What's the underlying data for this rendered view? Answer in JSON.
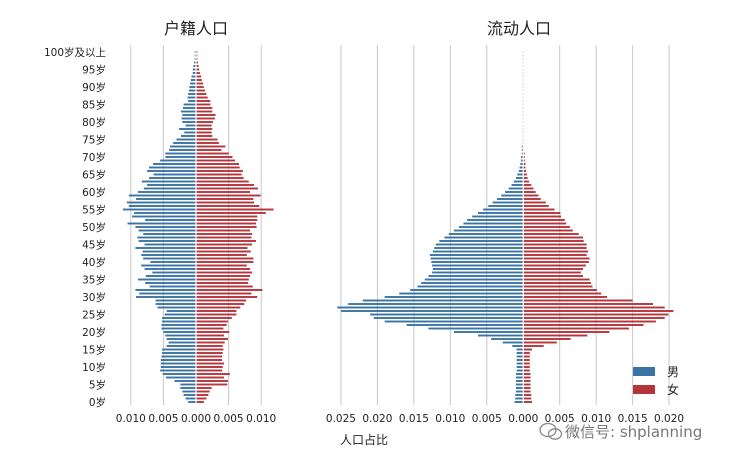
{
  "colors": {
    "male": "#3a73a6",
    "female": "#b5343a",
    "grid": "#c8c8c8",
    "axis": "#333333"
  },
  "chart_data": [
    {
      "type": "bar",
      "orientation": "horizontal-pyramid",
      "title": "户籍人口",
      "xlabel": "人口占比",
      "ylabel": "",
      "xlim": [
        -0.0135,
        0.0135
      ],
      "x_ticks": [
        "0.010",
        "0.005",
        "0.000",
        "0.005",
        "0.010"
      ],
      "x_tick_values": [
        -0.01,
        -0.005,
        0,
        0.005,
        0.01
      ],
      "y_tick_labels": [
        "0岁",
        "5岁",
        "10岁",
        "15岁",
        "20岁",
        "25岁",
        "30岁",
        "35岁",
        "40岁",
        "45岁",
        "50岁",
        "55岁",
        "60岁",
        "65岁",
        "70岁",
        "75岁",
        "80岁",
        "85岁",
        "90岁",
        "95岁",
        "100岁及以上"
      ],
      "ages_count": 101,
      "series": [
        {
          "name": "男",
          "values": [
            0.0012,
            0.0016,
            0.0019,
            0.0021,
            0.0024,
            0.0024,
            0.0033,
            0.0046,
            0.0051,
            0.0055,
            0.0054,
            0.0054,
            0.0054,
            0.0053,
            0.0052,
            0.0052,
            0.0045,
            0.0042,
            0.0045,
            0.0047,
            0.005,
            0.0053,
            0.0053,
            0.0052,
            0.0052,
            0.0048,
            0.0045,
            0.0059,
            0.0062,
            0.0062,
            0.0092,
            0.0087,
            0.0093,
            0.0071,
            0.0078,
            0.0089,
            0.0077,
            0.0067,
            0.0079,
            0.0084,
            0.007,
            0.0081,
            0.0084,
            0.0082,
            0.0093,
            0.0079,
            0.0088,
            0.009,
            0.0081,
            0.0088,
            0.0093,
            0.0105,
            0.0078,
            0.0098,
            0.0095,
            0.0112,
            0.0103,
            0.0106,
            0.0092,
            0.0103,
            0.0089,
            0.008,
            0.0075,
            0.0083,
            0.0072,
            0.0065,
            0.0075,
            0.0072,
            0.0066,
            0.0055,
            0.0047,
            0.0047,
            0.0041,
            0.004,
            0.0035,
            0.003,
            0.0023,
            0.0018,
            0.0026,
            0.0016,
            0.0021,
            0.0022,
            0.0021,
            0.0023,
            0.002,
            0.0019,
            0.0012,
            0.0013,
            0.0012,
            0.0011,
            0.001,
            0.0009,
            0.0008,
            0.0007,
            0.0005,
            0.0005,
            0.0004,
            0.0003,
            0.0002,
            0.0002,
            0.0002
          ]
        },
        {
          "name": "女",
          "values": [
            0.0012,
            0.0016,
            0.0019,
            0.0021,
            0.0024,
            0.0048,
            0.0049,
            0.0043,
            0.0052,
            0.004,
            0.0041,
            0.0043,
            0.004,
            0.004,
            0.0041,
            0.0042,
            0.0041,
            0.0044,
            0.0049,
            0.0043,
            0.0051,
            0.0042,
            0.0047,
            0.0049,
            0.0055,
            0.0062,
            0.0062,
            0.0068,
            0.0074,
            0.0077,
            0.0094,
            0.0085,
            0.0102,
            0.0087,
            0.008,
            0.0081,
            0.0083,
            0.0086,
            0.0083,
            0.0078,
            0.0088,
            0.0088,
            0.0078,
            0.0084,
            0.0079,
            0.0086,
            0.0092,
            0.0085,
            0.0086,
            0.0083,
            0.0093,
            0.0092,
            0.0094,
            0.0094,
            0.0107,
            0.0119,
            0.0097,
            0.0089,
            0.0088,
            0.0099,
            0.0083,
            0.0095,
            0.0089,
            0.0081,
            0.0073,
            0.007,
            0.0072,
            0.0067,
            0.0066,
            0.006,
            0.0056,
            0.005,
            0.0039,
            0.0045,
            0.0035,
            0.0033,
            0.0025,
            0.0024,
            0.0025,
            0.0024,
            0.0026,
            0.0029,
            0.003,
            0.0025,
            0.0025,
            0.0022,
            0.0022,
            0.0018,
            0.0016,
            0.0014,
            0.0012,
            0.0011,
            0.0009,
            0.0008,
            0.0006,
            0.0005,
            0.0004,
            0.0003,
            0.0002,
            0.0002,
            0.0002
          ]
        }
      ]
    },
    {
      "type": "bar",
      "orientation": "horizontal-pyramid",
      "title": "流动人口",
      "xlabel": "",
      "ylabel": "",
      "xlim": [
        -0.0265,
        0.0215
      ],
      "x_ticks": [
        "0.025",
        "0.020",
        "0.015",
        "0.010",
        "0.005",
        "0.000",
        "0.005",
        "0.010",
        "0.015",
        "0.020"
      ],
      "x_tick_values": [
        -0.025,
        -0.02,
        -0.015,
        -0.01,
        -0.005,
        0,
        0.005,
        0.01,
        0.015,
        0.02
      ],
      "ages_count": 101,
      "series": [
        {
          "name": "男",
          "values": [
            0.0012,
            0.0011,
            0.0011,
            0.001,
            0.001,
            0.001,
            0.001,
            0.001,
            0.001,
            0.0009,
            0.0009,
            0.0009,
            0.0009,
            0.0009,
            0.0009,
            0.0009,
            0.0015,
            0.0028,
            0.0044,
            0.0062,
            0.0095,
            0.013,
            0.016,
            0.019,
            0.0205,
            0.021,
            0.025,
            0.0255,
            0.024,
            0.022,
            0.019,
            0.017,
            0.0155,
            0.0145,
            0.014,
            0.0135,
            0.013,
            0.0125,
            0.0124,
            0.0125,
            0.0126,
            0.0127,
            0.0128,
            0.0124,
            0.0122,
            0.012,
            0.0115,
            0.0108,
            0.0102,
            0.0095,
            0.0088,
            0.0082,
            0.0077,
            0.007,
            0.0062,
            0.0055,
            0.0048,
            0.0042,
            0.0036,
            0.003,
            0.0025,
            0.002,
            0.0016,
            0.0013,
            0.001,
            0.0008,
            0.0006,
            0.0005,
            0.0004,
            0.0003,
            0.0003,
            0.0002,
            0.0002,
            0.0002,
            0.0001,
            0.0001,
            0.0001,
            0.0001,
            0.0001,
            0.0001,
            0.0001,
            0.0001,
            0.0001,
            0.0001,
            0.0001,
            0.0001,
            0.0001,
            0.0001,
            0.0001,
            0.0001,
            0.0001,
            0.0001,
            0.0001,
            0.0001,
            0.0001,
            0.0001,
            0.0001,
            0.0001,
            0.0001,
            0.0001,
            0.0001
          ]
        },
        {
          "name": "女",
          "values": [
            0.0012,
            0.0011,
            0.0011,
            0.001,
            0.001,
            0.001,
            0.001,
            0.001,
            0.001,
            0.0009,
            0.0009,
            0.0009,
            0.0009,
            0.0009,
            0.0009,
            0.0012,
            0.0028,
            0.0046,
            0.0065,
            0.0088,
            0.0118,
            0.0145,
            0.0165,
            0.0182,
            0.0194,
            0.0199,
            0.0206,
            0.0194,
            0.0178,
            0.015,
            0.0115,
            0.0107,
            0.0101,
            0.0095,
            0.0093,
            0.0091,
            0.0082,
            0.0079,
            0.0082,
            0.0086,
            0.009,
            0.0091,
            0.0087,
            0.0089,
            0.0087,
            0.0087,
            0.0083,
            0.0082,
            0.0076,
            0.0068,
            0.0064,
            0.0059,
            0.0057,
            0.0052,
            0.0051,
            0.0043,
            0.0035,
            0.0031,
            0.0024,
            0.0021,
            0.0017,
            0.0014,
            0.0011,
            0.0008,
            0.0006,
            0.0005,
            0.0004,
            0.0003,
            0.0003,
            0.0002,
            0.0002,
            0.0002,
            0.0001,
            0.0001,
            0.0001,
            0.0001,
            0.0001,
            0.0001,
            0.0001,
            0.0001,
            0.0001,
            0.0001,
            0.0001,
            0.0001,
            0.0001,
            0.0001,
            0.0001,
            0.0001,
            0.0001,
            0.0001,
            0.0001,
            0.0001,
            0.0001,
            0.0001,
            0.0001,
            0.0001,
            0.0001,
            0.0001,
            0.0001,
            0.0001,
            0.0001
          ]
        }
      ]
    }
  ],
  "legend": {
    "placement": "bottom-right",
    "items": [
      {
        "label": "男"
      },
      {
        "label": "女"
      }
    ]
  },
  "watermark": "微信号: shplanning"
}
